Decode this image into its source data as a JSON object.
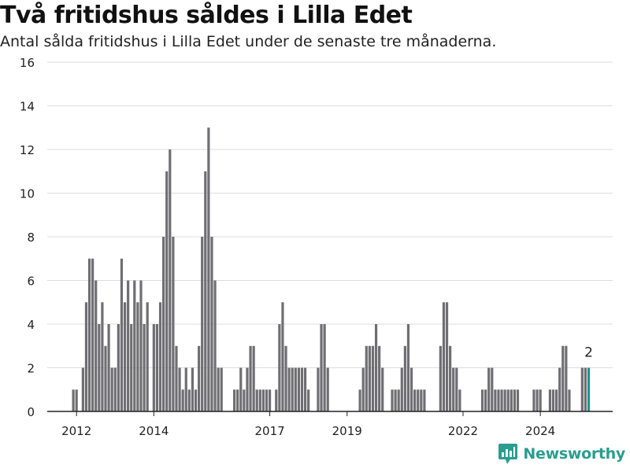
{
  "title": "Två fritidshus såldes i Lilla Edet",
  "subtitle": "Antal sålda fritidshus i Lilla Edet under de senaste tre månaderna.",
  "brand": {
    "name": "Newsworthy",
    "icon": "chart-bubble-icon",
    "color": "#2a9d8f"
  },
  "colors": {
    "bar": "#6e6e73",
    "highlight": "#1a968d",
    "grid": "#dddddd",
    "axis": "#222222"
  },
  "chart_data": {
    "type": "bar",
    "x_unit": "month",
    "start": "2011-12",
    "ylim": [
      0,
      16
    ],
    "yticks": [
      0,
      2,
      4,
      6,
      8,
      10,
      12,
      14,
      16
    ],
    "xticks": [
      "2012",
      "2014",
      "2017",
      "2019",
      "2022",
      "2024"
    ],
    "grid": true,
    "highlight_last": true,
    "annotation": "2",
    "values": [
      1,
      1,
      0,
      2,
      5,
      7,
      7,
      6,
      4,
      5,
      3,
      4,
      2,
      2,
      4,
      7,
      5,
      6,
      4,
      6,
      5,
      6,
      4,
      5,
      0,
      4,
      4,
      5,
      8,
      11,
      12,
      8,
      3,
      2,
      1,
      2,
      1,
      2,
      1,
      3,
      8,
      11,
      13,
      8,
      6,
      2,
      2,
      0,
      0,
      0,
      1,
      1,
      2,
      1,
      2,
      3,
      3,
      1,
      1,
      1,
      1,
      1,
      0,
      1,
      4,
      5,
      3,
      2,
      2,
      2,
      2,
      2,
      2,
      1,
      0,
      0,
      2,
      4,
      4,
      2,
      0,
      0,
      0,
      0,
      0,
      0,
      0,
      0,
      0,
      1,
      2,
      3,
      3,
      3,
      4,
      3,
      2,
      0,
      0,
      1,
      1,
      1,
      2,
      3,
      4,
      2,
      1,
      1,
      1,
      1,
      0,
      0,
      0,
      0,
      3,
      5,
      5,
      3,
      2,
      2,
      1,
      0,
      0,
      0,
      0,
      0,
      0,
      1,
      1,
      2,
      2,
      1,
      1,
      1,
      1,
      1,
      1,
      1,
      1,
      0,
      0,
      0,
      0,
      1,
      1,
      1,
      0,
      0,
      1,
      1,
      1,
      2,
      3,
      3,
      1,
      0,
      0,
      0,
      2,
      2,
      2
    ]
  }
}
